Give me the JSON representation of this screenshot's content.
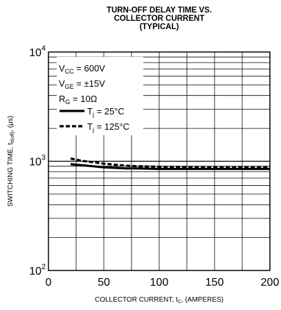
{
  "title_lines": [
    "TURN-OFF DELAY TIME VS.",
    "COLLECTOR CURRENT",
    "(TYPICAL)"
  ],
  "legend": {
    "conditions": [
      {
        "label": "V",
        "sub": "CC",
        "value": " = 600V"
      },
      {
        "label": "V",
        "sub": "GE",
        "value": " = ±15V"
      },
      {
        "label": "R",
        "sub": "G",
        "value": " = 10Ω"
      }
    ],
    "series_labels": [
      {
        "label": "T",
        "sub": "j",
        "value": " = 25°C"
      },
      {
        "label": "T",
        "sub": "j",
        "value": " = 125°C"
      }
    ]
  },
  "chart_data": {
    "type": "line",
    "title": "TURN-OFF DELAY TIME VS. COLLECTOR CURRENT (TYPICAL)",
    "xlabel": "COLLECTOR CURRENT, I_C, (AMPERES)",
    "ylabel": "SWITCHING TIME, t_d(off), (μs)",
    "xlim": [
      0,
      200
    ],
    "ylim": [
      100,
      10000
    ],
    "y_scale": "log",
    "grid": true,
    "legend_position": "top-left",
    "x_ticks": [
      "0",
      "50",
      "100",
      "150",
      "200"
    ],
    "y_ticks": [
      {
        "value": 100,
        "base": "10",
        "exp": "2"
      },
      {
        "value": 1000,
        "base": "10",
        "exp": "3"
      },
      {
        "value": 10000,
        "base": "10",
        "exp": "4"
      }
    ],
    "series": [
      {
        "name": "T_j = 25°C",
        "style": "solid",
        "x": [
          20,
          30,
          40,
          50,
          60,
          70,
          80,
          100,
          120,
          150,
          180,
          200
        ],
        "y": [
          940,
          920,
          900,
          880,
          870,
          860,
          860,
          850,
          850,
          850,
          850,
          850
        ]
      },
      {
        "name": "T_j = 125°C",
        "style": "dashed",
        "x": [
          20,
          30,
          40,
          50,
          60,
          70,
          80,
          100,
          120,
          150,
          180,
          200
        ],
        "y": [
          1060,
          1010,
          980,
          950,
          930,
          910,
          900,
          890,
          885,
          880,
          880,
          880
        ]
      }
    ]
  }
}
